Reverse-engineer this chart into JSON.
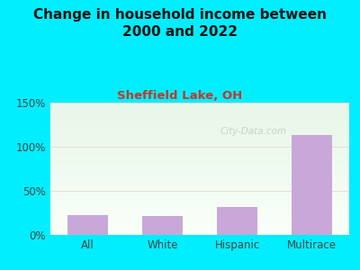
{
  "title": "Change in household income between\n2000 and 2022",
  "subtitle": "Sheffield Lake, OH",
  "categories": [
    "All",
    "White",
    "Hispanic",
    "Multirace"
  ],
  "values": [
    22,
    21,
    32,
    113
  ],
  "bar_color": "#c8a8d8",
  "background_outer": "#00eeff",
  "grad_top": "#e8f5e8",
  "grad_bottom": "#f8fff8",
  "title_fontsize": 11,
  "subtitle_fontsize": 9.5,
  "subtitle_color": "#c0392b",
  "title_color": "#111111",
  "tick_label_color": "#444444",
  "ylim": [
    0,
    150
  ],
  "yticks": [
    0,
    50,
    100,
    150
  ],
  "ytick_labels": [
    "0%",
    "50%",
    "100%",
    "150%"
  ],
  "grid_color": "#ddbbbb",
  "watermark": "City-Data.com"
}
